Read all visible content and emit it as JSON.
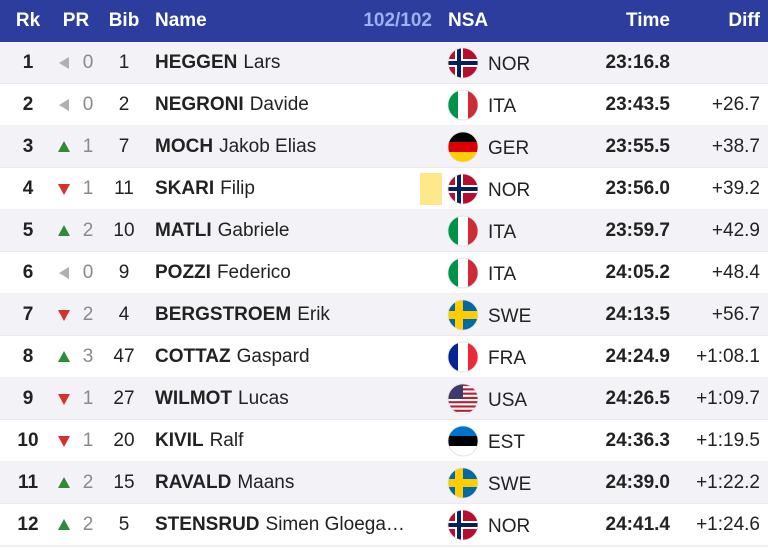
{
  "header": {
    "rank": "Rk",
    "pr": "PR",
    "bib": "Bib",
    "name": "Name",
    "count": "102/102",
    "nsa": "NSA",
    "time": "Time",
    "diff": "Diff"
  },
  "rows": [
    {
      "rank": 1,
      "pr_dir": "same",
      "pr": 0,
      "bib": 1,
      "last": "HEGGEN",
      "first": "Lars",
      "nsa": "NOR",
      "time": "23:16.8",
      "diff": null
    },
    {
      "rank": 2,
      "pr_dir": "same",
      "pr": 0,
      "bib": 2,
      "last": "NEGRONI",
      "first": "Davide",
      "nsa": "ITA",
      "time": "23:43.5",
      "diff": "+26.7"
    },
    {
      "rank": 3,
      "pr_dir": "up",
      "pr": 1,
      "bib": 7,
      "last": "MOCH",
      "first": "Jakob Elias",
      "nsa": "GER",
      "time": "23:55.5",
      "diff": "+38.7"
    },
    {
      "rank": 4,
      "pr_dir": "down",
      "pr": 1,
      "bib": 11,
      "last": "SKARI",
      "first": "Filip",
      "nsa": "NOR",
      "time": "23:56.0",
      "diff": "+39.2",
      "marker": "#fde98c"
    },
    {
      "rank": 5,
      "pr_dir": "up",
      "pr": 2,
      "bib": 10,
      "last": "MATLI",
      "first": "Gabriele",
      "nsa": "ITA",
      "time": "23:59.7",
      "diff": "+42.9"
    },
    {
      "rank": 6,
      "pr_dir": "same",
      "pr": 0,
      "bib": 9,
      "last": "POZZI",
      "first": "Federico",
      "nsa": "ITA",
      "time": "24:05.2",
      "diff": "+48.4"
    },
    {
      "rank": 7,
      "pr_dir": "down",
      "pr": 2,
      "bib": 4,
      "last": "BERGSTROEM",
      "first": "Erik",
      "nsa": "SWE",
      "time": "24:13.5",
      "diff": "+56.7"
    },
    {
      "rank": 8,
      "pr_dir": "up",
      "pr": 3,
      "bib": 47,
      "last": "COTTAZ",
      "first": "Gaspard",
      "nsa": "FRA",
      "time": "24:24.9",
      "diff": "+1:08.1"
    },
    {
      "rank": 9,
      "pr_dir": "down",
      "pr": 1,
      "bib": 27,
      "last": "WILMOT",
      "first": "Lucas",
      "nsa": "USA",
      "time": "24:26.5",
      "diff": "+1:09.7"
    },
    {
      "rank": 10,
      "pr_dir": "down",
      "pr": 1,
      "bib": 20,
      "last": "KIVIL",
      "first": "Ralf",
      "nsa": "EST",
      "time": "24:36.3",
      "diff": "+1:19.5"
    },
    {
      "rank": 11,
      "pr_dir": "up",
      "pr": 2,
      "bib": 15,
      "last": "RAVALD",
      "first": "Maans",
      "nsa": "SWE",
      "time": "24:39.0",
      "diff": "+1:22.2"
    },
    {
      "rank": 12,
      "pr_dir": "up",
      "pr": 2,
      "bib": 5,
      "last": "STENSRUD",
      "first": "Simen Gloega…",
      "nsa": "NOR",
      "time": "24:41.4",
      "diff": "+1:24.6"
    }
  ],
  "flag_styles": {
    "NOR": {
      "kind": "cross",
      "colors": [
        "#ba0c2f",
        "#ffffff",
        "#00205b"
      ]
    },
    "SWE": {
      "kind": "cross",
      "colors": [
        "#006aa7",
        "#fecc00",
        "#fecc00"
      ]
    },
    "ITA": {
      "kind": "vertical",
      "colors": [
        "#009246",
        "#ffffff",
        "#ce2b37"
      ]
    },
    "FRA": {
      "kind": "vertical",
      "colors": [
        "#002395",
        "#ffffff",
        "#ed2939"
      ]
    },
    "GER": {
      "kind": "horizontal",
      "colors": [
        "#000000",
        "#dd0000",
        "#ffce00"
      ]
    },
    "EST": {
      "kind": "horizontal",
      "colors": [
        "#0072ce",
        "#000000",
        "#ffffff"
      ]
    },
    "USA": {
      "kind": "stars",
      "colors": [
        "#b22234",
        "#ffffff",
        "#3c3b6e"
      ]
    }
  }
}
